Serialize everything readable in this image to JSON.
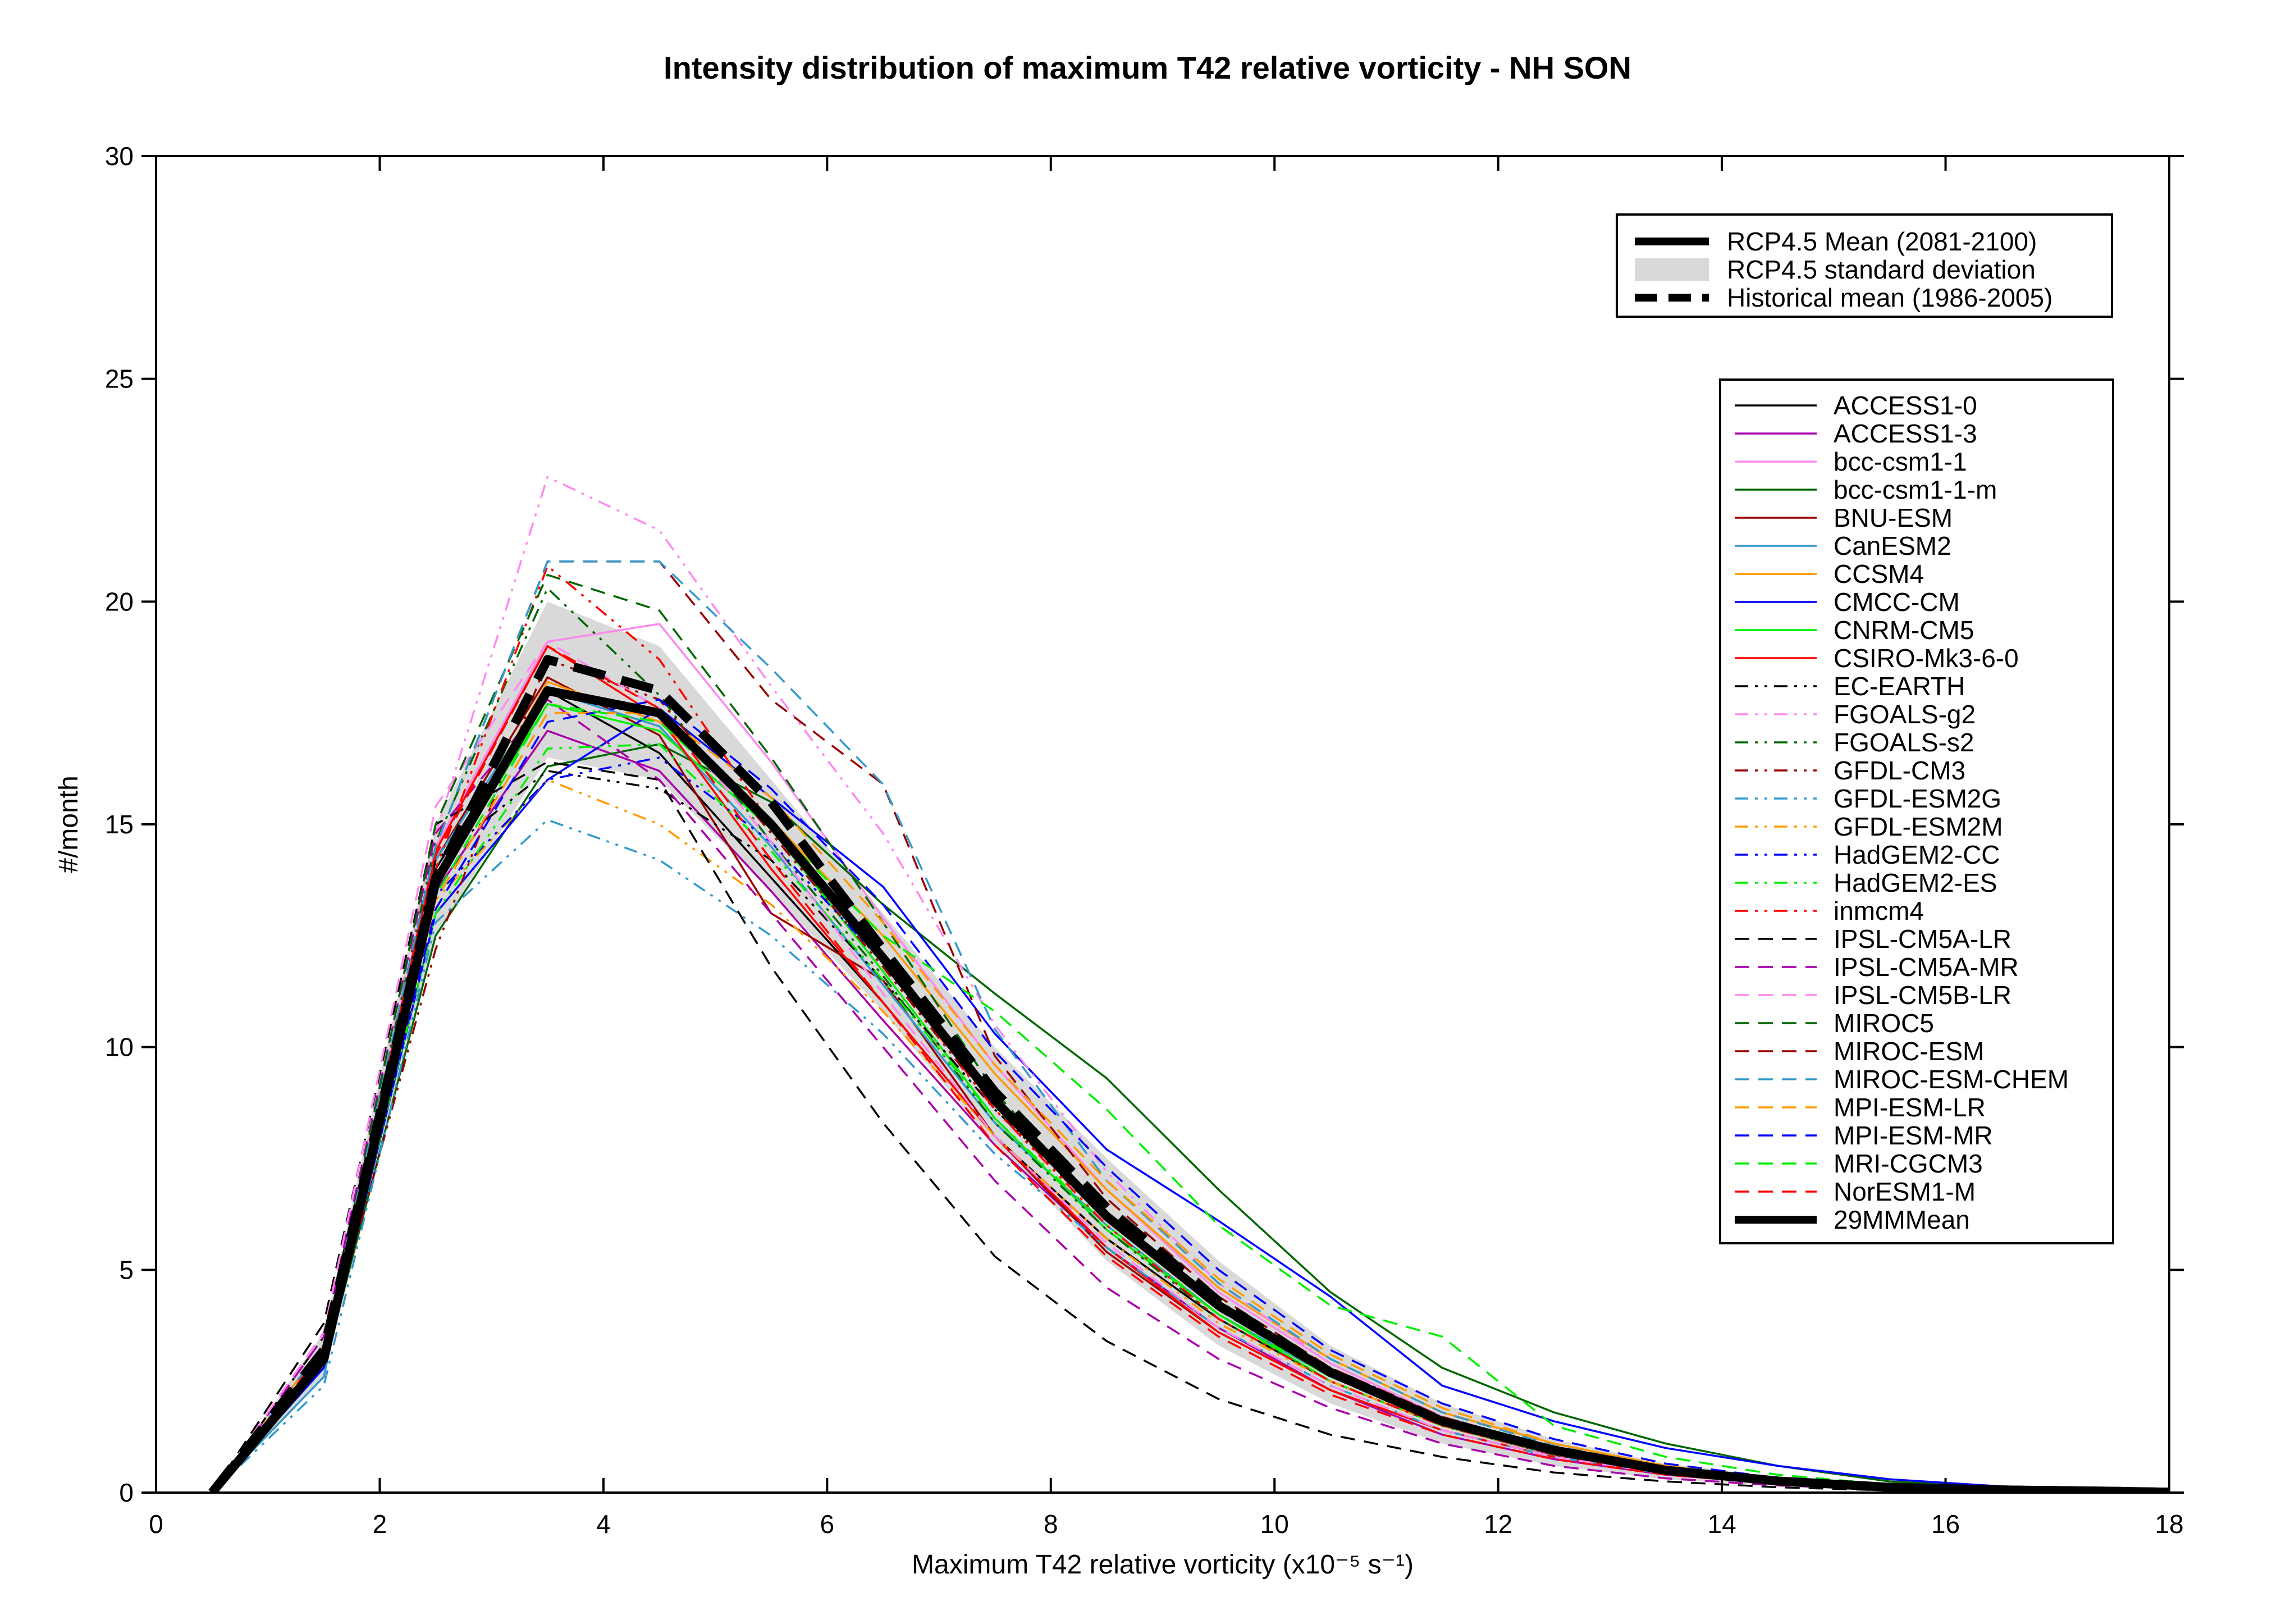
{
  "chart_data": {
    "type": "line",
    "title": "Intensity distribution of maximum T42 relative vorticity - NH SON",
    "xlabel": "Maximum T42 relative vorticity (x10⁻⁵ s⁻¹)",
    "ylabel": "#/month",
    "xlim": [
      0,
      18
    ],
    "ylim": [
      0,
      30
    ],
    "xticks": [
      "0",
      "2",
      "4",
      "6",
      "8",
      "10",
      "12",
      "14",
      "16",
      "18"
    ],
    "yticks": [
      "0",
      "5",
      "10",
      "15",
      "20",
      "25",
      "30"
    ],
    "x": [
      0.5,
      1.5,
      2.5,
      3.5,
      4.5,
      5.5,
      6.5,
      7.5,
      8.5,
      9.5,
      10.5,
      11.5,
      12.5,
      13.5,
      14.5,
      15.5,
      16.5,
      17.5,
      18
    ],
    "grid": false,
    "legend_position": "top-right",
    "summary_legend": [
      {
        "name": "RCP4.5 Mean (2081-2100)",
        "style": "thick-solid"
      },
      {
        "name": "RCP4.5 standard deviation",
        "style": "band"
      },
      {
        "name": "Historical mean (1986-2005)",
        "style": "thick-dashed"
      }
    ],
    "std_band": {
      "upper": [
        0,
        3.6,
        15.0,
        20.0,
        19.0,
        16.0,
        13.0,
        10.0,
        7.5,
        5.2,
        3.3,
        2.0,
        1.2,
        0.65,
        0.35,
        0.18,
        0.1,
        0.05,
        0.03
      ],
      "lower": [
        0,
        2.6,
        12.5,
        16.5,
        16.0,
        13.5,
        10.8,
        7.8,
        5.2,
        3.3,
        2.0,
        1.1,
        0.6,
        0.3,
        0.15,
        0.07,
        0.03,
        0.01,
        0.0
      ]
    },
    "historical_mean": [
      0,
      3.2,
      13.8,
      18.7,
      18.0,
      15.5,
      12.2,
      9.0,
      6.4,
      4.3,
      2.7,
      1.6,
      0.95,
      0.5,
      0.26,
      0.12,
      0.06,
      0.03,
      0.01
    ],
    "series": [
      {
        "name": "ACCESS1-0",
        "color": "#000000",
        "dash": "solid",
        "values": [
          0,
          3.1,
          14.0,
          18.0,
          16.6,
          13.8,
          11.0,
          8.0,
          5.7,
          3.9,
          2.5,
          1.5,
          0.85,
          0.45,
          0.22,
          0.1,
          0.05,
          0.02,
          0.01
        ]
      },
      {
        "name": "ACCESS1-3",
        "color": "#aa00aa",
        "dash": "solid",
        "values": [
          0,
          3.0,
          13.5,
          17.1,
          16.2,
          13.5,
          10.6,
          7.8,
          5.5,
          3.7,
          2.3,
          1.3,
          0.75,
          0.4,
          0.2,
          0.09,
          0.04,
          0.02,
          0.01
        ]
      },
      {
        "name": "bcc-csm1-1",
        "color": "#ff88ee",
        "dash": "solid",
        "values": [
          0,
          3.0,
          14.5,
          19.1,
          19.5,
          16.4,
          12.9,
          9.6,
          6.8,
          4.5,
          2.9,
          1.7,
          1.0,
          0.55,
          0.28,
          0.13,
          0.06,
          0.03,
          0.01
        ]
      },
      {
        "name": "bcc-csm1-1-m",
        "color": "#006600",
        "dash": "solid",
        "values": [
          0,
          2.8,
          12.5,
          16.3,
          16.8,
          15.5,
          13.2,
          11.2,
          9.3,
          6.8,
          4.5,
          2.8,
          1.8,
          1.1,
          0.6,
          0.25,
          0.12,
          0.05,
          0.02
        ]
      },
      {
        "name": "BNU-ESM",
        "color": "#990000",
        "dash": "solid",
        "values": [
          0,
          3.0,
          14.2,
          18.3,
          17.0,
          13.0,
          11.5,
          8.0,
          5.4,
          3.6,
          2.3,
          1.4,
          0.8,
          0.42,
          0.21,
          0.1,
          0.05,
          0.02,
          0.01
        ]
      },
      {
        "name": "CanESM2",
        "color": "#3399cc",
        "dash": "solid",
        "values": [
          0,
          2.6,
          14.2,
          18.0,
          17.2,
          14.5,
          11.4,
          8.3,
          6.0,
          4.0,
          2.6,
          1.6,
          0.9,
          0.5,
          0.25,
          0.11,
          0.05,
          0.02,
          0.01
        ]
      },
      {
        "name": "CCSM4",
        "color": "#ff9900",
        "dash": "solid",
        "values": [
          0,
          3.3,
          13.8,
          18.2,
          17.3,
          15.1,
          12.5,
          9.4,
          6.8,
          4.6,
          3.0,
          1.8,
          1.1,
          0.6,
          0.3,
          0.14,
          0.06,
          0.03,
          0.01
        ]
      },
      {
        "name": "CMCC-CM",
        "color": "#0000ff",
        "dash": "solid",
        "values": [
          0,
          2.8,
          13.0,
          16.0,
          17.6,
          15.6,
          13.6,
          10.3,
          7.7,
          6.1,
          4.4,
          2.4,
          1.6,
          1.0,
          0.6,
          0.3,
          0.14,
          0.06,
          0.02
        ]
      },
      {
        "name": "CNRM-CM5",
        "color": "#00ee00",
        "dash": "solid",
        "values": [
          0,
          2.9,
          13.7,
          17.7,
          17.1,
          14.9,
          11.7,
          8.4,
          5.9,
          4.0,
          2.5,
          1.5,
          0.86,
          0.46,
          0.23,
          0.1,
          0.05,
          0.02,
          0.01
        ]
      },
      {
        "name": "CSIRO-Mk3-6-0",
        "color": "#ff0000",
        "dash": "solid",
        "values": [
          0,
          3.0,
          14.4,
          19.0,
          17.4,
          14.0,
          11.0,
          8.0,
          5.5,
          3.6,
          2.3,
          1.4,
          0.8,
          0.42,
          0.21,
          0.1,
          0.05,
          0.02,
          0.01
        ]
      },
      {
        "name": "EC-EARTH",
        "color": "#000000",
        "dash": "dashdotdot",
        "values": [
          0,
          3.5,
          14.2,
          16.2,
          15.8,
          14.2,
          11.5,
          8.6,
          6.2,
          4.3,
          2.8,
          1.7,
          1.0,
          0.55,
          0.28,
          0.13,
          0.06,
          0.03,
          0.01
        ]
      },
      {
        "name": "FGOALS-g2",
        "color": "#ff88ee",
        "dash": "dashdotdot",
        "values": [
          0,
          3.2,
          14.8,
          22.8,
          21.6,
          18.1,
          14.8,
          10.5,
          7.2,
          4.7,
          2.9,
          1.7,
          1.0,
          0.55,
          0.28,
          0.13,
          0.06,
          0.03,
          0.01
        ]
      },
      {
        "name": "FGOALS-s2",
        "color": "#006600",
        "dash": "dashdotdot",
        "values": [
          0,
          3.1,
          14.6,
          20.3,
          17.9,
          14.6,
          11.6,
          8.3,
          5.9,
          3.9,
          2.5,
          1.5,
          0.86,
          0.46,
          0.23,
          0.1,
          0.05,
          0.02,
          0.01
        ]
      },
      {
        "name": "GFDL-CM3",
        "color": "#990000",
        "dash": "dashdotdot",
        "values": [
          0,
          3.0,
          12.2,
          18.7,
          17.8,
          14.8,
          11.8,
          8.6,
          6.1,
          4.1,
          2.6,
          1.6,
          0.9,
          0.5,
          0.25,
          0.11,
          0.05,
          0.02,
          0.01
        ]
      },
      {
        "name": "GFDL-ESM2G",
        "color": "#3399cc",
        "dash": "dashdotdot",
        "values": [
          0,
          2.4,
          12.8,
          15.1,
          14.2,
          12.5,
          10.3,
          7.6,
          5.5,
          3.7,
          2.4,
          1.4,
          0.8,
          0.42,
          0.21,
          0.1,
          0.05,
          0.02,
          0.01
        ]
      },
      {
        "name": "GFDL-ESM2M",
        "color": "#ff9900",
        "dash": "dashdotdot",
        "values": [
          0,
          2.9,
          13.3,
          16.0,
          15.0,
          13.2,
          10.8,
          8.0,
          5.7,
          3.8,
          2.5,
          1.5,
          0.86,
          0.46,
          0.23,
          0.1,
          0.05,
          0.02,
          0.01
        ]
      },
      {
        "name": "HadGEM2-CC",
        "color": "#0000ff",
        "dash": "dashdotdot",
        "values": [
          0,
          2.9,
          13.4,
          16.0,
          16.5,
          14.6,
          11.9,
          8.7,
          6.2,
          4.2,
          2.7,
          1.6,
          0.95,
          0.5,
          0.26,
          0.12,
          0.06,
          0.03,
          0.01
        ]
      },
      {
        "name": "HadGEM2-ES",
        "color": "#00ee00",
        "dash": "dashdotdot",
        "values": [
          0,
          2.9,
          13.0,
          16.7,
          16.8,
          14.4,
          11.5,
          8.4,
          6.0,
          4.0,
          2.6,
          1.6,
          0.9,
          0.5,
          0.25,
          0.11,
          0.05,
          0.02,
          0.01
        ]
      },
      {
        "name": "inmcm4",
        "color": "#ff0000",
        "dash": "dashdotdot",
        "values": [
          0,
          3.2,
          14.0,
          20.8,
          18.7,
          15.0,
          11.9,
          8.6,
          6.0,
          3.9,
          2.5,
          1.5,
          0.86,
          0.46,
          0.23,
          0.1,
          0.05,
          0.02,
          0.01
        ]
      },
      {
        "name": "IPSL-CM5A-LR",
        "color": "#000000",
        "dash": "dashed",
        "values": [
          0,
          3.8,
          15.0,
          16.4,
          16.0,
          11.8,
          8.3,
          5.3,
          3.4,
          2.1,
          1.3,
          0.8,
          0.45,
          0.25,
          0.12,
          0.05,
          0.02,
          0.01,
          0.0
        ]
      },
      {
        "name": "IPSL-CM5A-MR",
        "color": "#aa00aa",
        "dash": "dashed",
        "values": [
          0,
          3.5,
          14.8,
          17.8,
          16.0,
          13.0,
          10.0,
          7.0,
          4.6,
          3.0,
          1.9,
          1.1,
          0.6,
          0.32,
          0.16,
          0.07,
          0.03,
          0.01,
          0.0
        ]
      },
      {
        "name": "IPSL-CM5B-LR",
        "color": "#ff88ee",
        "dash": "dashed",
        "values": [
          0,
          3.6,
          15.4,
          19.1,
          17.6,
          14.6,
          11.2,
          8.0,
          5.6,
          3.7,
          2.4,
          1.4,
          0.8,
          0.42,
          0.21,
          0.1,
          0.05,
          0.02,
          0.01
        ]
      },
      {
        "name": "MIROC5",
        "color": "#006600",
        "dash": "dashed",
        "values": [
          0,
          3.2,
          15.0,
          20.6,
          19.8,
          16.5,
          12.8,
          9.0,
          6.2,
          4.1,
          2.6,
          1.6,
          0.9,
          0.5,
          0.25,
          0.11,
          0.05,
          0.02,
          0.01
        ]
      },
      {
        "name": "MIROC-ESM",
        "color": "#990000",
        "dash": "dashed",
        "values": [
          0,
          3.3,
          14.5,
          20.9,
          20.9,
          17.8,
          15.9,
          9.8,
          6.6,
          4.4,
          2.8,
          1.7,
          1.0,
          0.55,
          0.28,
          0.13,
          0.06,
          0.03,
          0.01
        ]
      },
      {
        "name": "MIROC-ESM-CHEM",
        "color": "#3399cc",
        "dash": "dashed",
        "values": [
          0,
          3.3,
          14.5,
          20.9,
          20.9,
          18.5,
          15.9,
          10.4,
          7.0,
          4.7,
          3.0,
          1.8,
          1.05,
          0.58,
          0.29,
          0.14,
          0.06,
          0.03,
          0.01
        ]
      },
      {
        "name": "MPI-ESM-LR",
        "color": "#ff9900",
        "dash": "dashed",
        "values": [
          0,
          2.9,
          13.3,
          17.5,
          17.5,
          15.6,
          12.8,
          9.6,
          7.0,
          4.8,
          3.1,
          1.9,
          1.1,
          0.6,
          0.3,
          0.14,
          0.06,
          0.03,
          0.01
        ]
      },
      {
        "name": "MPI-ESM-MR",
        "color": "#0000ff",
        "dash": "dashed",
        "values": [
          0,
          2.9,
          13.1,
          17.3,
          17.8,
          15.8,
          13.2,
          9.9,
          7.3,
          5.0,
          3.2,
          2.0,
          1.2,
          0.65,
          0.33,
          0.15,
          0.07,
          0.03,
          0.01
        ]
      },
      {
        "name": "MRI-CGCM3",
        "color": "#00ee00",
        "dash": "dashed",
        "values": [
          0,
          2.9,
          13.4,
          17.7,
          17.3,
          15.0,
          12.5,
          10.8,
          8.6,
          6.0,
          4.2,
          3.5,
          1.5,
          0.8,
          0.4,
          0.18,
          0.08,
          0.03,
          0.01
        ]
      },
      {
        "name": "NorESM1-M",
        "color": "#ff0000",
        "dash": "dashed",
        "values": [
          0,
          3.2,
          14.3,
          19.0,
          17.6,
          14.2,
          11.0,
          7.8,
          5.3,
          3.5,
          2.2,
          1.3,
          0.75,
          0.4,
          0.2,
          0.09,
          0.04,
          0.02,
          0.01
        ]
      },
      {
        "name": "29MMMean",
        "color": "#000000",
        "dash": "thick",
        "values": [
          0,
          3.0,
          13.7,
          18.0,
          17.5,
          15.0,
          12.0,
          8.8,
          6.2,
          4.2,
          2.7,
          1.6,
          0.95,
          0.5,
          0.26,
          0.12,
          0.06,
          0.03,
          0.01
        ]
      }
    ]
  }
}
